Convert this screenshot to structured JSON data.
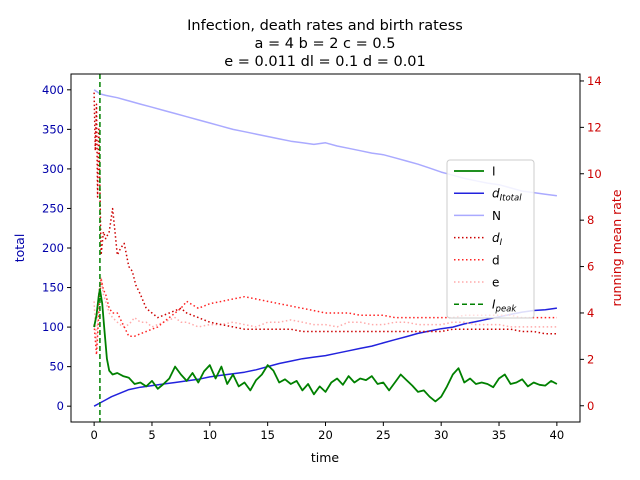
{
  "chart_data": {
    "type": "line",
    "title_lines": [
      "Infection, death rates and birth ratess",
      "a = 4   b = 2   c = 0.5",
      "e = 0.011   dl = 0.1   d = 0.01"
    ],
    "xlabel": "time",
    "ylabel_left": "total",
    "ylabel_right": "running mean rate",
    "xlim": [
      -2,
      42
    ],
    "ylim_left": [
      -20,
      420
    ],
    "ylim_right": [
      -0.7,
      14.3
    ],
    "xticks": [
      "0",
      "5",
      "10",
      "15",
      "20",
      "25",
      "30",
      "35",
      "40"
    ],
    "yticks_left": [
      "0",
      "50",
      "100",
      "150",
      "200",
      "250",
      "300",
      "350",
      "400"
    ],
    "yticks_right": [
      "0",
      "2",
      "4",
      "6",
      "8",
      "10",
      "12",
      "14"
    ],
    "grid": false,
    "legend_position": "center-right",
    "colors": {
      "I": "#008000",
      "dItotal": "#2222dd",
      "N": "#aaaaff",
      "dl": "#cc0000",
      "d": "#ff2222",
      "e": "#ffaaaa",
      "Ipeak": "#008000",
      "left_axis": "#0000aa",
      "right_axis": "#cc0000"
    },
    "series": [
      {
        "key": "I",
        "name": "I",
        "axis": "left",
        "style": "solid",
        "x": [
          0,
          0.2,
          0.4,
          0.5,
          0.7,
          0.9,
          1.1,
          1.3,
          1.6,
          2,
          2.5,
          3,
          3.5,
          4,
          4.5,
          5,
          5.5,
          6,
          6.5,
          7,
          7.5,
          8,
          8.5,
          9,
          9.5,
          10,
          10.5,
          11,
          11.5,
          12,
          12.5,
          13,
          13.5,
          14,
          14.5,
          15,
          15.5,
          16,
          16.5,
          17,
          17.5,
          18,
          18.5,
          19,
          19.5,
          20,
          20.5,
          21,
          21.5,
          22,
          22.5,
          23,
          23.5,
          24,
          24.5,
          25,
          25.5,
          26,
          26.5,
          27,
          27.5,
          28,
          28.5,
          29,
          29.5,
          30,
          30.5,
          31,
          31.5,
          32,
          32.5,
          33,
          33.5,
          34,
          34.5,
          35,
          35.5,
          36,
          36.5,
          37,
          37.5,
          38,
          38.5,
          39,
          39.5,
          40
        ],
        "y": [
          100,
          115,
          140,
          148,
          130,
          95,
          60,
          45,
          40,
          42,
          38,
          36,
          28,
          30,
          25,
          32,
          22,
          28,
          35,
          50,
          40,
          32,
          42,
          30,
          44,
          52,
          35,
          50,
          28,
          40,
          25,
          30,
          20,
          33,
          40,
          52,
          45,
          30,
          34,
          28,
          32,
          20,
          28,
          15,
          25,
          18,
          30,
          35,
          27,
          38,
          30,
          35,
          33,
          38,
          28,
          30,
          20,
          30,
          40,
          33,
          26,
          18,
          20,
          12,
          6,
          12,
          25,
          40,
          48,
          30,
          35,
          28,
          30,
          28,
          24,
          35,
          40,
          28,
          30,
          34,
          25,
          30,
          27,
          26,
          32,
          28
        ]
      },
      {
        "key": "dItotal",
        "name": "d_Itotal",
        "axis": "left",
        "style": "solid",
        "x": [
          0,
          0.5,
          1,
          1.5,
          2,
          2.5,
          3,
          4,
          5,
          6,
          7,
          8,
          9,
          10,
          11,
          12,
          13,
          14,
          15,
          16,
          17,
          18,
          19,
          20,
          21,
          22,
          23,
          24,
          25,
          26,
          27,
          28,
          29,
          30,
          31,
          32,
          33,
          34,
          35,
          36,
          37,
          38,
          39,
          40
        ],
        "y": [
          0,
          4,
          8,
          12,
          15,
          18,
          21,
          24,
          26,
          28,
          30,
          32,
          34,
          37,
          39,
          41,
          43,
          46,
          50,
          54,
          57,
          60,
          62,
          64,
          67,
          70,
          73,
          76,
          80,
          84,
          88,
          92,
          95,
          98,
          100,
          104,
          107,
          110,
          113,
          116,
          119,
          121,
          122,
          124
        ]
      },
      {
        "key": "N",
        "name": "N",
        "axis": "left",
        "style": "solid",
        "x": [
          0,
          0.5,
          1,
          2,
          3,
          4,
          5,
          6,
          7,
          8,
          9,
          10,
          11,
          12,
          13,
          14,
          15,
          16,
          17,
          18,
          19,
          20,
          21,
          22,
          23,
          24,
          25,
          26,
          27,
          28,
          29,
          30,
          31,
          32,
          33,
          34,
          35,
          36,
          37,
          38,
          39,
          40
        ],
        "y": [
          400,
          395,
          393,
          390,
          386,
          382,
          378,
          374,
          370,
          366,
          362,
          358,
          354,
          350,
          347,
          344,
          341,
          338,
          335,
          333,
          331,
          333,
          329,
          326,
          323,
          320,
          318,
          314,
          310,
          306,
          301,
          296,
          292,
          288,
          285,
          282,
          280,
          276,
          272,
          270,
          268,
          266
        ]
      },
      {
        "key": "dl",
        "name": "d_I",
        "axis": "right",
        "style": "dotted",
        "x": [
          0,
          0.1,
          0.2,
          0.3,
          0.4,
          0.6,
          0.8,
          1,
          1.3,
          1.6,
          1.8,
          2,
          2.3,
          2.6,
          3,
          3.3,
          3.6,
          4,
          4.5,
          5,
          5.5,
          6,
          6.5,
          7,
          7.5,
          8,
          9,
          10,
          11,
          12,
          13,
          14,
          15,
          16,
          17,
          18,
          19,
          20,
          21,
          22,
          23,
          24,
          25,
          26,
          27,
          28,
          29,
          30,
          31,
          32,
          33,
          34,
          35,
          36,
          37,
          38,
          39,
          40
        ],
        "y": [
          13.5,
          11,
          13,
          9,
          12,
          6.5,
          7.5,
          7.2,
          7.5,
          8.5,
          7.5,
          6.5,
          6.8,
          7.0,
          6.0,
          5.8,
          5.2,
          4.8,
          4.2,
          4.0,
          3.8,
          3.9,
          4.0,
          4.1,
          4.2,
          4.0,
          3.8,
          3.6,
          3.5,
          3.4,
          3.3,
          3.3,
          3.3,
          3.3,
          3.3,
          3.2,
          3.2,
          3.2,
          3.2,
          3.2,
          3.2,
          3.2,
          3.2,
          3.2,
          3.2,
          3.2,
          3.2,
          3.2,
          3.3,
          3.3,
          3.3,
          3.3,
          3.3,
          3.3,
          3.2,
          3.2,
          3.1,
          3.1
        ]
      },
      {
        "key": "d",
        "name": "d",
        "axis": "right",
        "style": "dotted",
        "x": [
          0,
          0.2,
          0.4,
          0.6,
          0.8,
          1,
          1.3,
          1.6,
          2,
          2.5,
          3,
          3.5,
          4,
          4.5,
          5,
          5.5,
          6,
          6.5,
          7,
          7.5,
          8,
          9,
          10,
          11,
          12,
          13,
          14,
          15,
          16,
          17,
          18,
          19,
          20,
          21,
          22,
          23,
          24,
          25,
          26,
          27,
          28,
          29,
          30,
          31,
          32,
          33,
          34,
          35,
          36,
          37,
          38,
          39,
          40
        ],
        "y": [
          3.5,
          2.2,
          4.0,
          5.5,
          5.0,
          4.8,
          4.2,
          4.0,
          4.0,
          3.5,
          3.0,
          3.0,
          3.1,
          3.2,
          3.3,
          3.4,
          3.6,
          3.8,
          4.0,
          4.2,
          4.5,
          4.2,
          4.4,
          4.5,
          4.6,
          4.7,
          4.6,
          4.5,
          4.4,
          4.3,
          4.2,
          4.1,
          4.0,
          4.0,
          4.0,
          3.9,
          3.9,
          3.9,
          3.8,
          3.8,
          3.8,
          3.8,
          3.8,
          3.8,
          3.9,
          3.9,
          3.9,
          3.9,
          3.9,
          3.8,
          3.8,
          3.8,
          3.8
        ]
      },
      {
        "key": "e",
        "name": "e",
        "axis": "right",
        "style": "dotted",
        "x": [
          0,
          0.2,
          0.4,
          0.6,
          0.8,
          1,
          1.3,
          1.6,
          2,
          2.5,
          3,
          3.5,
          4,
          4.5,
          5,
          5.5,
          6,
          6.5,
          7,
          7.5,
          8,
          9,
          10,
          11,
          12,
          13,
          14,
          15,
          16,
          17,
          18,
          19,
          20,
          21,
          22,
          23,
          24,
          25,
          26,
          27,
          28,
          29,
          30,
          31,
          32,
          33,
          34,
          35,
          36,
          37,
          38,
          39,
          40
        ],
        "y": [
          4.5,
          2.5,
          5.0,
          5.5,
          4.8,
          4.5,
          4.0,
          3.8,
          3.6,
          3.4,
          3.5,
          3.8,
          3.6,
          3.6,
          3.4,
          3.5,
          3.6,
          3.7,
          3.8,
          3.6,
          3.6,
          3.4,
          3.5,
          3.5,
          3.6,
          3.5,
          3.4,
          3.6,
          3.6,
          3.7,
          3.6,
          3.5,
          3.5,
          3.4,
          3.6,
          3.6,
          3.5,
          3.5,
          3.6,
          3.6,
          3.5,
          3.5,
          3.5,
          3.6,
          3.6,
          3.5,
          3.5,
          3.5,
          3.4,
          3.4,
          3.4,
          3.4,
          3.4
        ]
      }
    ],
    "vlines": [
      {
        "key": "Ipeak",
        "name": "I_peak",
        "x": 0.5,
        "style": "dashed"
      }
    ],
    "legend": [
      {
        "key": "I",
        "base": "I",
        "sub": "",
        "style": "solid"
      },
      {
        "key": "dItotal",
        "base": "d",
        "sub": "Itotal",
        "style": "solid"
      },
      {
        "key": "N",
        "base": "N",
        "sub": "",
        "style": "solid"
      },
      {
        "key": "dl",
        "base": "d",
        "sub": "I",
        "style": "dotted"
      },
      {
        "key": "d",
        "base": "d",
        "sub": "",
        "style": "dotted"
      },
      {
        "key": "e",
        "base": "e",
        "sub": "",
        "style": "dotted"
      },
      {
        "key": "Ipeak",
        "base": "I",
        "sub": "peak",
        "style": "dashed"
      }
    ]
  }
}
